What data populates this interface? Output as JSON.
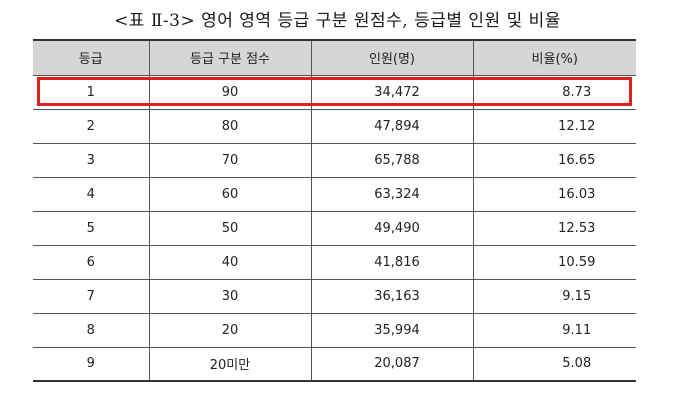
{
  "caption": "<표 Ⅱ-3> 영어 영역 등급 구분 원점수, 등급별 인원 및 비율",
  "table": {
    "headers": [
      "등급",
      "등급 구분 점수",
      "인원(명)",
      "비율(%)"
    ],
    "rows": [
      [
        "1",
        "90",
        "34,472",
        "8.73"
      ],
      [
        "2",
        "80",
        "47,894",
        "12.12"
      ],
      [
        "3",
        "70",
        "65,788",
        "16.65"
      ],
      [
        "4",
        "60",
        "63,324",
        "16.03"
      ],
      [
        "5",
        "50",
        "49,490",
        "12.53"
      ],
      [
        "6",
        "40",
        "41,816",
        "10.59"
      ],
      [
        "7",
        "30",
        "36,163",
        "9.15"
      ],
      [
        "8",
        "20",
        "35,994",
        "9.11"
      ],
      [
        "9",
        "20미만",
        "20,087",
        "5.08"
      ]
    ],
    "highlighted_row": 1
  },
  "colors": {
    "header_bg": "#d6d6d6",
    "highlight": "#e02020",
    "border": "#555555"
  }
}
